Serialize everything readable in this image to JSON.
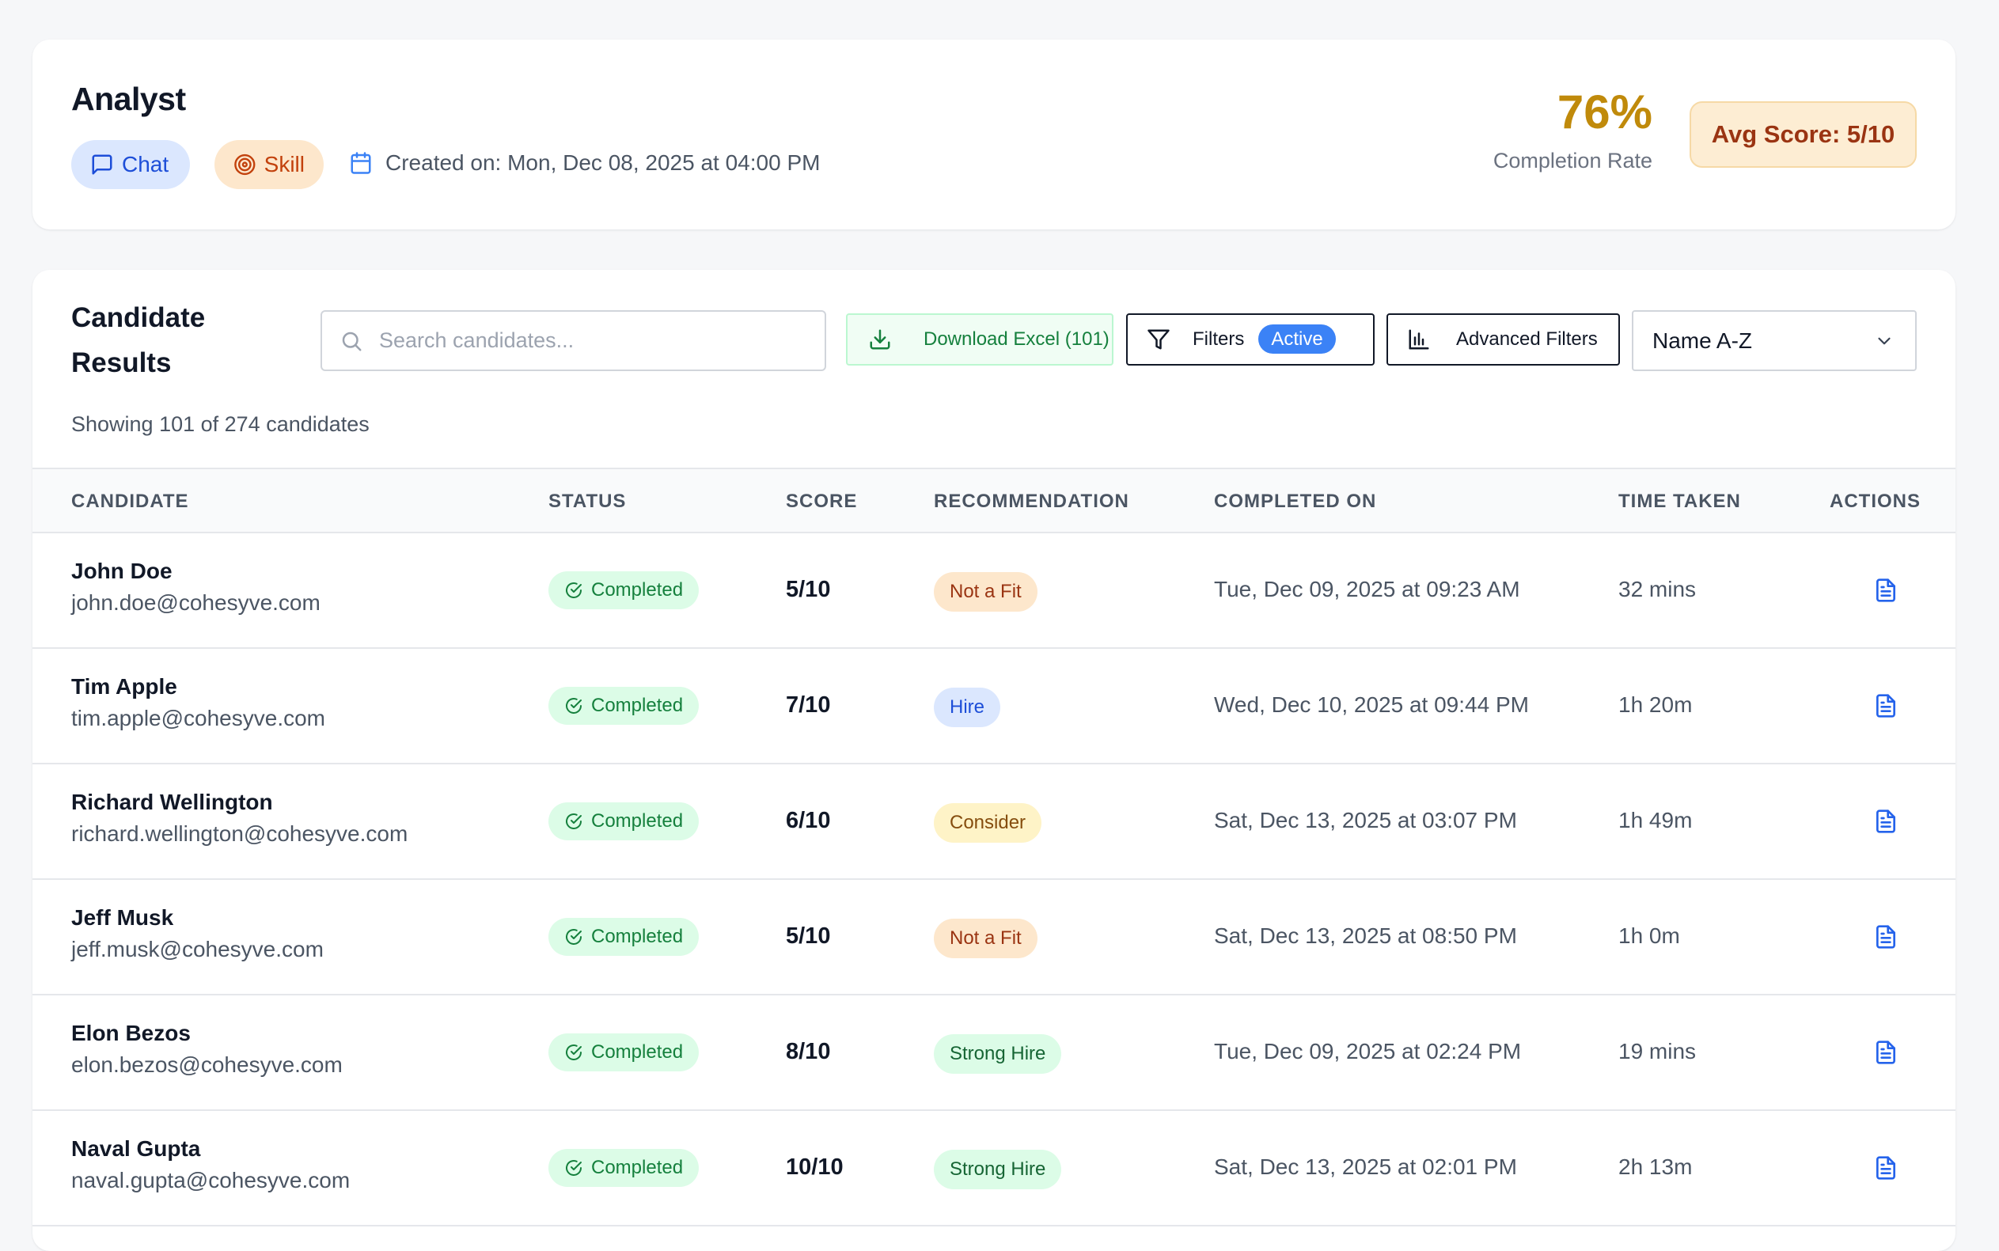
{
  "header": {
    "title": "Analyst",
    "chat_label": "Chat",
    "skill_label": "Skill",
    "created_on": "Created on: Mon, Dec 08, 2025 at 04:00 PM",
    "completion_rate": "76%",
    "completion_label": "Completion Rate",
    "avg_score": "Avg Score: 5/10"
  },
  "results": {
    "title_line1": "Candidate",
    "title_line2": "Results",
    "search_placeholder": "Search candidates...",
    "download_label": "Download Excel (101)",
    "filters_label": "Filters",
    "filters_active": "Active",
    "advanced_label": "Advanced Filters",
    "sort_value": "Name A-Z",
    "showing": "Showing 101 of 274 candidates"
  },
  "table": {
    "columns": [
      "CANDIDATE",
      "STATUS",
      "SCORE",
      "RECOMMENDATION",
      "COMPLETED ON",
      "TIME TAKEN",
      "ACTIONS"
    ],
    "rows": [
      {
        "name": "John Doe",
        "email": "john.doe@cohesyve.com",
        "status": "Completed",
        "score": "5/10",
        "rec": "Not a Fit",
        "completed": "Tue, Dec 09, 2025 at 09:23 AM",
        "time": "32 mins"
      },
      {
        "name": "Tim Apple",
        "email": "tim.apple@cohesyve.com",
        "status": "Completed",
        "score": "7/10",
        "rec": "Hire",
        "completed": "Wed, Dec 10, 2025 at 09:44 PM",
        "time": "1h 20m"
      },
      {
        "name": "Richard Wellington",
        "email": "richard.wellington@cohesyve.com",
        "status": "Completed",
        "score": "6/10",
        "rec": "Consider",
        "completed": "Sat, Dec 13, 2025 at 03:07 PM",
        "time": "1h 49m"
      },
      {
        "name": "Jeff Musk",
        "email": "jeff.musk@cohesyve.com",
        "status": "Completed",
        "score": "5/10",
        "rec": "Not a Fit",
        "completed": "Sat, Dec 13, 2025 at 08:50 PM",
        "time": "1h 0m"
      },
      {
        "name": "Elon Bezos",
        "email": "elon.bezos@cohesyve.com",
        "status": "Completed",
        "score": "8/10",
        "rec": "Strong Hire",
        "completed": "Tue, Dec 09, 2025 at 02:24 PM",
        "time": "19 mins"
      },
      {
        "name": "Naval Gupta",
        "email": "naval.gupta@cohesyve.com",
        "status": "Completed",
        "score": "10/10",
        "rec": "Strong Hire",
        "completed": "Sat, Dec 13, 2025 at 02:01 PM",
        "time": "2h 13m"
      }
    ]
  },
  "colors": {
    "accent": "#c08a0b",
    "rec_not_a_fit": {
      "bg": "#fde7cc",
      "fg": "#9a3412"
    },
    "rec_hire": {
      "bg": "#dbe7fe",
      "fg": "#1d4ed8"
    },
    "rec_consider": {
      "bg": "#fef3c7",
      "fg": "#854d0e"
    },
    "rec_strong_hire": {
      "bg": "#dcfce7",
      "fg": "#166534"
    }
  },
  "icons": {
    "chat": "message-square-icon",
    "skill": "target-icon",
    "created": "calendar-icon",
    "search": "search-icon",
    "download": "download-icon",
    "filters": "filter-icon",
    "advanced": "bar-chart-icon",
    "sort": "chevron-down-icon",
    "status": "check-circle-icon",
    "action": "file-text-icon"
  }
}
